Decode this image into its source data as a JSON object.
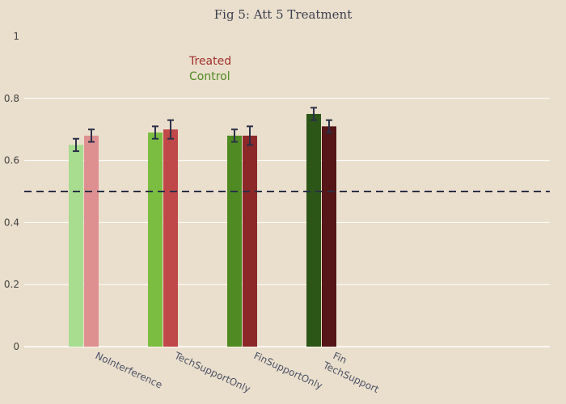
{
  "chart_data": {
    "type": "bar",
    "title": "Fig 5: Att 5 Treatment",
    "xlabel": "",
    "ylabel": "",
    "categories": [
      "NoInterference",
      "TechSupportOnly",
      "FinSupportOnly",
      "Fin\nTechSupport"
    ],
    "ylim": [
      0,
      1
    ],
    "yticks": [
      "0",
      "0.2",
      "0.4",
      "0.6",
      "0.8",
      "1"
    ],
    "ytick_values": [
      0,
      0.2,
      0.4,
      0.6,
      0.8,
      1
    ],
    "reference_line": 0.5,
    "grid": true,
    "legend_position": "top-left",
    "legend": [
      {
        "label": "Treated",
        "color": "#a0302e"
      },
      {
        "label": "Control",
        "color": "#4f8a22"
      }
    ],
    "series": [
      {
        "role": "control",
        "values": [
          0.65,
          0.69,
          0.68,
          0.75
        ],
        "error": [
          0.02,
          0.02,
          0.02,
          0.02
        ],
        "colors": [
          "#a8dc8f",
          "#7bbd40",
          "#4f8a22",
          "#2c5618"
        ]
      },
      {
        "role": "treated",
        "values": [
          0.68,
          0.7,
          0.68,
          0.71
        ],
        "error": [
          0.02,
          0.03,
          0.03,
          0.02
        ],
        "colors": [
          "#de9090",
          "#c04848",
          "#8c2828",
          "#541616"
        ]
      }
    ],
    "colors": {
      "axis": "#ffffff",
      "grid": "#ffffff",
      "reference_line": "#2b3048",
      "error_bar": "#2b3048"
    }
  }
}
